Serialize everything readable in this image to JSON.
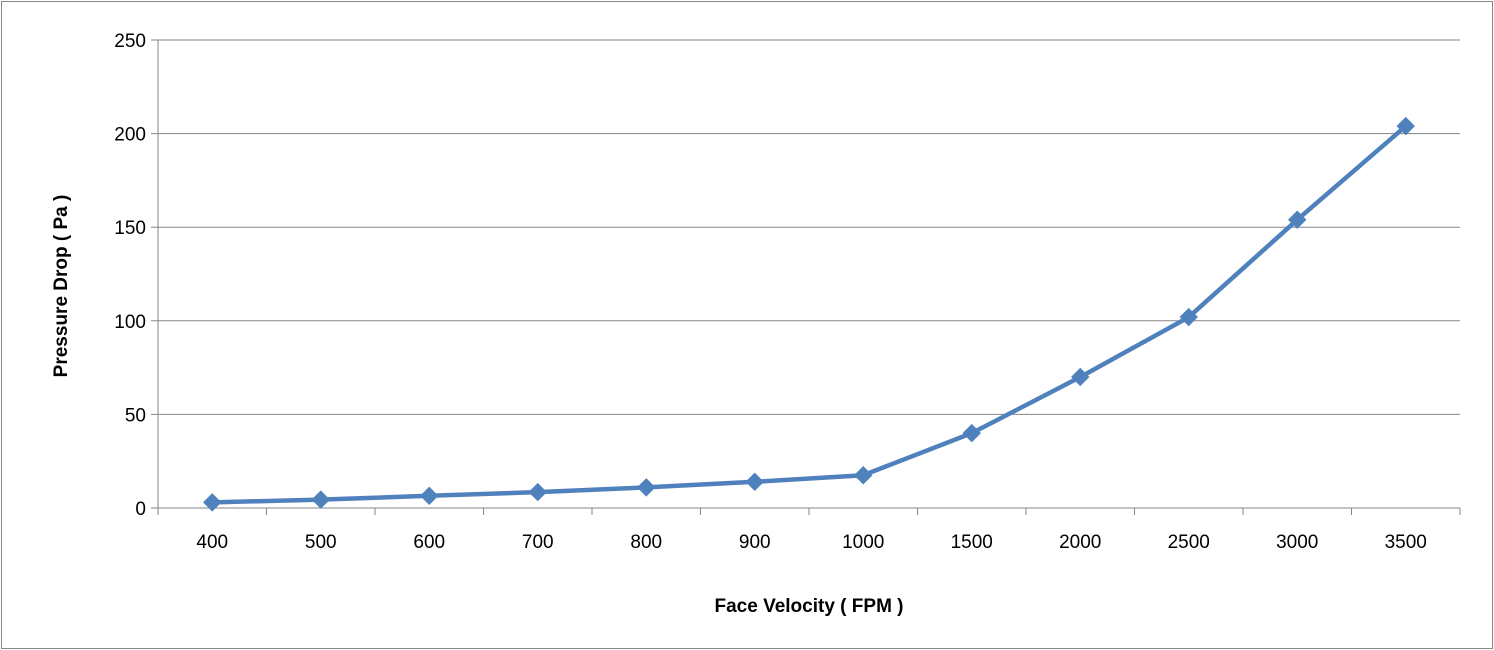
{
  "chart_data": {
    "type": "line",
    "title": "",
    "xlabel": "Face Velocity ( FPM )",
    "ylabel": "Pressure Drop ( Pa )",
    "categories": [
      "400",
      "500",
      "600",
      "700",
      "800",
      "900",
      "1000",
      "1500",
      "2000",
      "2500",
      "3000",
      "3500"
    ],
    "series": [
      {
        "values": [
          3,
          4.5,
          6.5,
          8.5,
          11,
          14,
          17.5,
          40,
          70,
          102,
          154,
          204
        ],
        "color": "#4F81BD",
        "marker": "diamond"
      }
    ],
    "ylim": [
      0,
      250
    ],
    "yticks": [
      0,
      50,
      100,
      150,
      200,
      250
    ],
    "grid": "horizontal",
    "legend": "none"
  }
}
